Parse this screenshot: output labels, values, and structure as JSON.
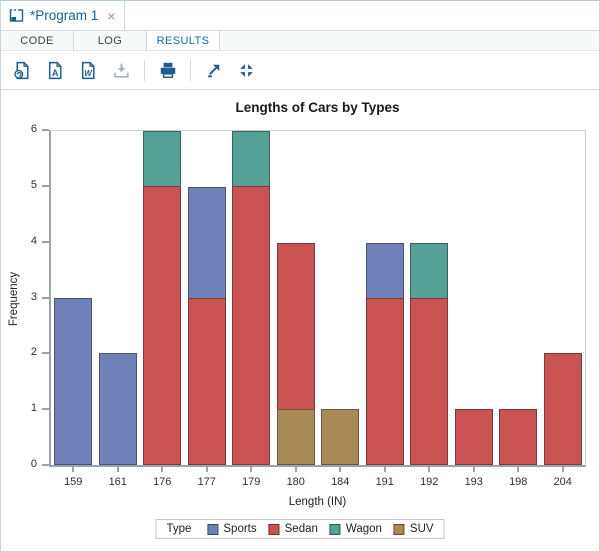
{
  "window_tab": {
    "title": "*Program 1",
    "close_glyph": "×"
  },
  "nav_tabs": [
    {
      "label": "CODE",
      "active": false
    },
    {
      "label": "LOG",
      "active": false
    },
    {
      "label": "RESULTS",
      "active": true
    }
  ],
  "toolbar": {
    "icons": [
      {
        "name": "download-html-icon",
        "enabled": true
      },
      {
        "name": "download-pdf-icon",
        "enabled": true,
        "letter": "A"
      },
      {
        "name": "download-rtf-icon",
        "enabled": true,
        "letter": "W"
      },
      {
        "name": "download-file-icon",
        "enabled": false
      },
      {
        "name": "print-icon",
        "enabled": true
      },
      {
        "name": "open-new-window-icon",
        "enabled": true
      },
      {
        "name": "exit-maximize-icon",
        "enabled": true
      }
    ]
  },
  "colors": {
    "icon_blue": "#1e5c8e",
    "icon_disabled": "#a3b2bd",
    "tab_active_blue": "#0e6fb4",
    "program_title_blue": "#17619b",
    "axis": "#98a3aa",
    "plot_frame": "#c9ced2"
  },
  "chart_data": {
    "type": "bar",
    "stacked": true,
    "title": "Lengths of Cars by Types",
    "xlabel": "Length (IN)",
    "ylabel": "Frequency",
    "ylim": [
      0,
      6
    ],
    "yticks": [
      0,
      1,
      2,
      3,
      4,
      5,
      6
    ],
    "grid": false,
    "categories": [
      "159",
      "161",
      "176",
      "177",
      "179",
      "180",
      "184",
      "191",
      "192",
      "193",
      "198",
      "204"
    ],
    "series": [
      {
        "name": "Sports",
        "color": "#7080b8",
        "values": [
          3,
          2,
          0,
          2,
          0,
          0,
          0,
          1,
          0,
          0,
          0,
          0
        ]
      },
      {
        "name": "Sedan",
        "color": "#ca5252",
        "values": [
          0,
          0,
          5,
          3,
          5,
          3,
          0,
          3,
          3,
          1,
          1,
          2
        ]
      },
      {
        "name": "Wagon",
        "color": "#55a196",
        "values": [
          0,
          0,
          1,
          0,
          1,
          0,
          0,
          0,
          1,
          0,
          0,
          0
        ]
      },
      {
        "name": "SUV",
        "color": "#a98a57",
        "values": [
          0,
          0,
          0,
          0,
          0,
          1,
          1,
          0,
          0,
          0,
          0,
          0
        ]
      }
    ],
    "stacks_bottom_to_top": [
      [
        [
          "Sports",
          3
        ]
      ],
      [
        [
          "Sports",
          2
        ]
      ],
      [
        [
          "Sedan",
          5
        ],
        [
          "Wagon",
          1
        ]
      ],
      [
        [
          "Sedan",
          3
        ],
        [
          "Sports",
          2
        ]
      ],
      [
        [
          "Sedan",
          5
        ],
        [
          "Wagon",
          1
        ]
      ],
      [
        [
          "SUV",
          1
        ],
        [
          "Sedan",
          3
        ]
      ],
      [
        [
          "SUV",
          1
        ]
      ],
      [
        [
          "Sedan",
          3
        ],
        [
          "Sports",
          1
        ]
      ],
      [
        [
          "Sedan",
          3
        ],
        [
          "Wagon",
          1
        ]
      ],
      [
        [
          "Sedan",
          1
        ]
      ],
      [
        [
          "Sedan",
          1
        ]
      ],
      [
        [
          "Sedan",
          2
        ]
      ]
    ],
    "legend": {
      "title": "Type",
      "entries": [
        "Sports",
        "Sedan",
        "Wagon",
        "SUV"
      ],
      "position": "bottom"
    }
  }
}
